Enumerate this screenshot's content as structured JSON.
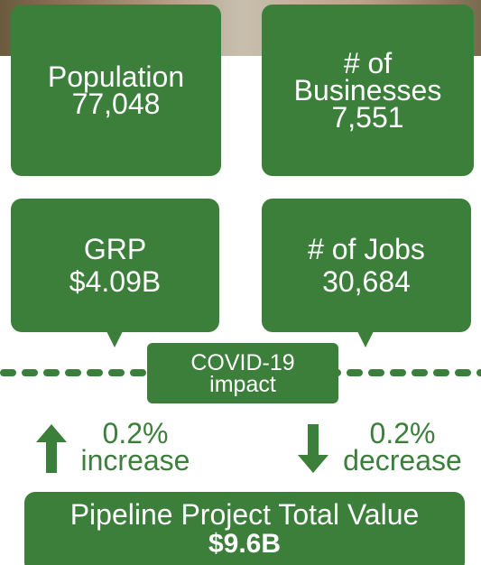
{
  "stats": [
    {
      "label": "Population",
      "value": "77,048"
    },
    {
      "label": "# of Businesses",
      "value": "7,551"
    },
    {
      "label": "GRP",
      "value": "$4.09B"
    },
    {
      "label": "# of Jobs",
      "value": "30,684"
    }
  ],
  "covid": {
    "title": "COVID-19 impact",
    "left": {
      "value": "0.2%",
      "label": "increase"
    },
    "right": {
      "value": "0.2%",
      "label": "decrease"
    }
  },
  "pipeline": {
    "title": "Pipeline Project Total Value",
    "value": "$9.6B"
  }
}
